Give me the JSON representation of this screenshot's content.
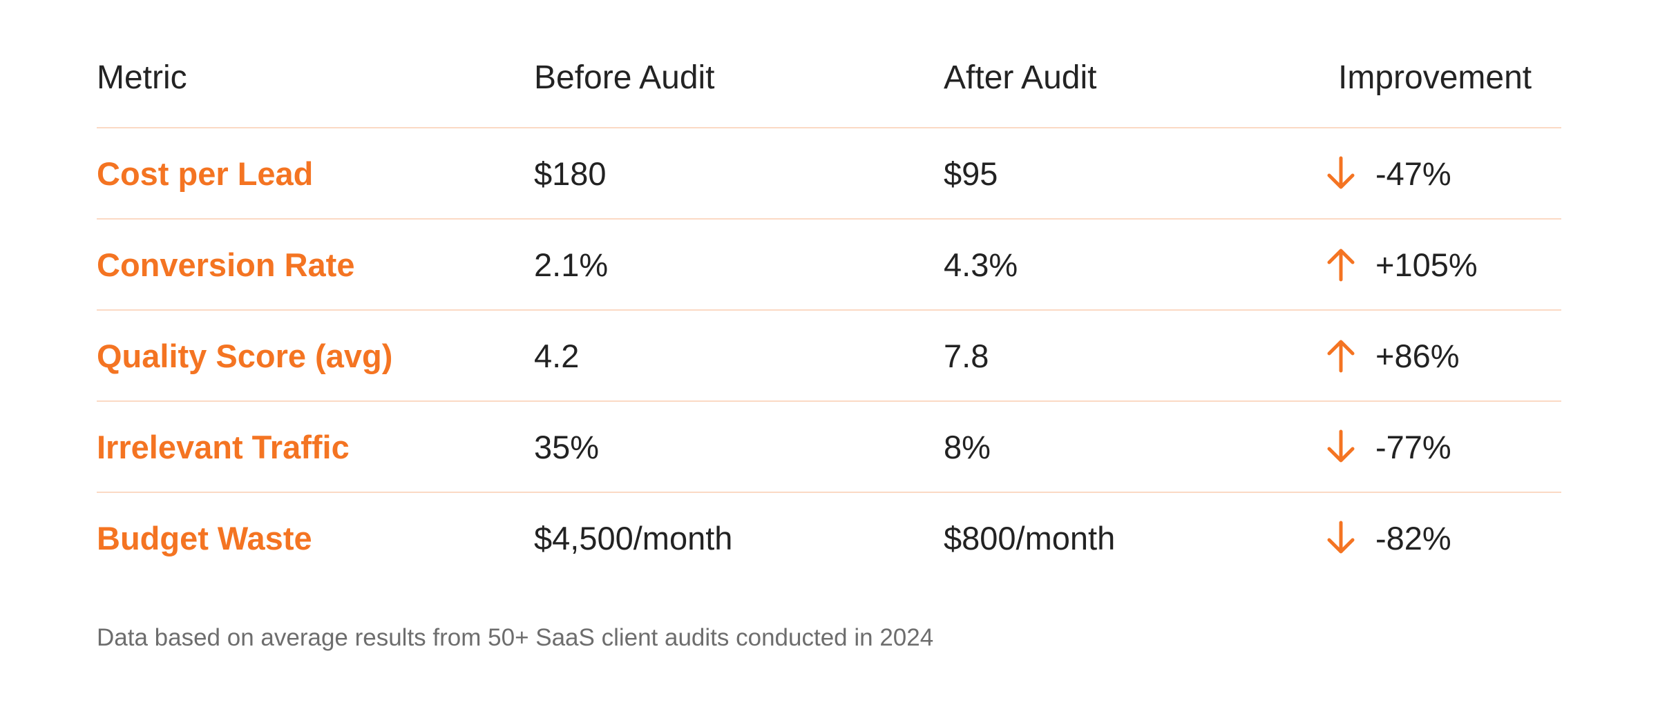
{
  "table": {
    "headers": {
      "metric": "Metric",
      "before": "Before Audit",
      "after": "After Audit",
      "improvement": "Improvement"
    },
    "rows": [
      {
        "metric": "Cost per Lead",
        "before": "$180",
        "after": "$95",
        "direction": "down",
        "direction_icon": "arrow-down-icon",
        "improvement": "-47%"
      },
      {
        "metric": "Conversion Rate",
        "before": "2.1%",
        "after": "4.3%",
        "direction": "up",
        "direction_icon": "arrow-up-icon",
        "improvement": "+105%"
      },
      {
        "metric": "Quality Score (avg)",
        "before": "4.2",
        "after": "7.8",
        "direction": "up",
        "direction_icon": "arrow-up-icon",
        "improvement": "+86%"
      },
      {
        "metric": "Irrelevant Traffic",
        "before": "35%",
        "after": "8%",
        "direction": "down",
        "direction_icon": "arrow-down-icon",
        "improvement": "-77%"
      },
      {
        "metric": "Budget Waste",
        "before": "$4,500/month",
        "after": "$800/month",
        "direction": "down",
        "direction_icon": "arrow-down-icon",
        "improvement": "-82%"
      }
    ]
  },
  "footnote": "Data based on average results from 50+ SaaS client audits conducted in 2024",
  "colors": {
    "accent": "#f47422",
    "divider": "#fbd9c4",
    "text": "#222222",
    "muted": "#6d6d6d"
  }
}
